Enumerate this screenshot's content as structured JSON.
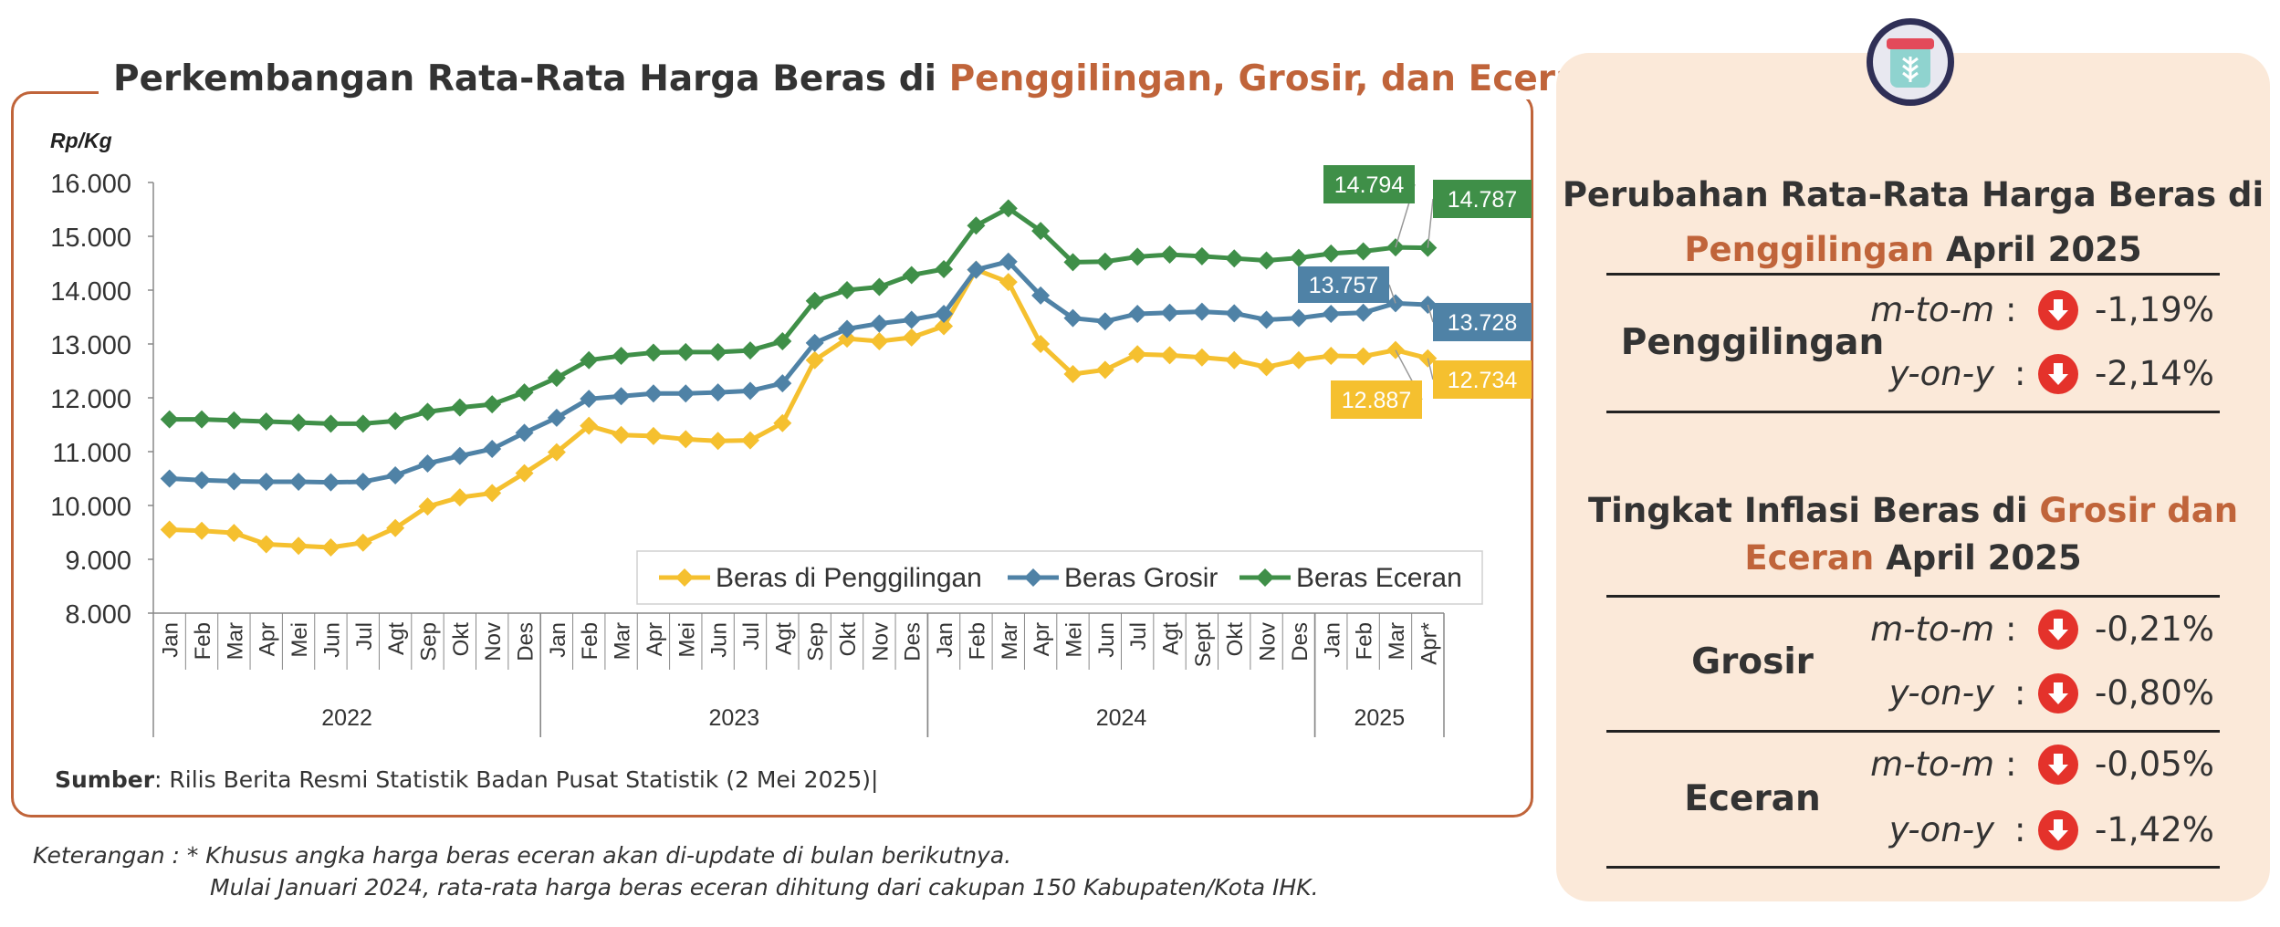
{
  "chart": {
    "title_part1": "Perkembangan Rata-Rata Harga Beras di ",
    "title_part2": "Penggilingan, Grosir, dan Eceran",
    "source_label": "Sumber",
    "source_text": ": Rilis Berita Resmi Statistik Badan Pusat Statistik (2 Mei 2025)|",
    "note_line1": "Keterangan : * Khusus angka harga beras eceran akan di-update di bulan berikutnya.",
    "note_line2": "Mulai Januari 2024, rata-rata harga beras eceran dihitung dari cakupan 150 Kabupaten/Kota IHK."
  },
  "chart_data": {
    "type": "line",
    "ylabel": "Rp/Kg",
    "ylim": [
      8000,
      16000
    ],
    "yticks": [
      "8.000",
      "9.000",
      "10.000",
      "11.000",
      "12.000",
      "13.000",
      "14.000",
      "15.000",
      "16.000"
    ],
    "x": [
      "Jan",
      "Feb",
      "Mar",
      "Apr",
      "Mei",
      "Jun",
      "Jul",
      "Agt",
      "Sep",
      "Okt",
      "Nov",
      "Des",
      "Jan",
      "Feb",
      "Mar",
      "Apr",
      "Mei",
      "Jun",
      "Jul",
      "Agt",
      "Sep",
      "Okt",
      "Nov",
      "Des",
      "Jan",
      "Feb",
      "Mar",
      "Apr",
      "Mei",
      "Jun",
      "Jul",
      "Agt",
      "Sept",
      "Okt",
      "Nov",
      "Des",
      "Jan",
      "Feb",
      "Mar",
      "Apr*"
    ],
    "years": [
      {
        "label": "2022",
        "start": 0,
        "end": 11
      },
      {
        "label": "2023",
        "start": 12,
        "end": 23
      },
      {
        "label": "2024",
        "start": 24,
        "end": 35
      },
      {
        "label": "2025",
        "start": 36,
        "end": 39
      }
    ],
    "legend_position": "bottom-right",
    "series": [
      {
        "name": "Beras di Penggilingan",
        "color": "#f5c02f",
        "values": [
          9550,
          9530,
          9490,
          9280,
          9250,
          9220,
          9310,
          9580,
          9980,
          10150,
          10230,
          10600,
          10990,
          11480,
          11310,
          11290,
          11230,
          11200,
          11210,
          11530,
          12700,
          13100,
          13050,
          13120,
          13330,
          14380,
          14150,
          13000,
          12440,
          12520,
          12810,
          12790,
          12750,
          12700,
          12570,
          12700,
          12780,
          12770,
          12887,
          12734
        ]
      },
      {
        "name": "Beras Grosir",
        "color": "#4f82a6",
        "values": [
          10500,
          10470,
          10450,
          10440,
          10440,
          10430,
          10440,
          10560,
          10780,
          10920,
          11050,
          11350,
          11630,
          11980,
          12030,
          12080,
          12080,
          12100,
          12130,
          12270,
          13020,
          13280,
          13380,
          13450,
          13560,
          14380,
          14530,
          13900,
          13480,
          13420,
          13560,
          13580,
          13600,
          13570,
          13450,
          13480,
          13560,
          13580,
          13757,
          13728
        ]
      },
      {
        "name": "Beras Eceran",
        "color": "#3f8f48",
        "values": [
          11600,
          11600,
          11580,
          11560,
          11540,
          11520,
          11520,
          11570,
          11740,
          11820,
          11880,
          12100,
          12370,
          12700,
          12780,
          12840,
          12850,
          12850,
          12880,
          13050,
          13800,
          14000,
          14060,
          14280,
          14390,
          15200,
          15520,
          15100,
          14520,
          14530,
          14620,
          14660,
          14630,
          14590,
          14550,
          14600,
          14680,
          14720,
          14794,
          14787
        ]
      }
    ],
    "annotations": [
      {
        "series": "Beras Eceran",
        "index": 38,
        "text": "14.794"
      },
      {
        "series": "Beras Eceran",
        "index": 39,
        "text": "14.787"
      },
      {
        "series": "Beras Grosir",
        "index": 38,
        "text": "13.757"
      },
      {
        "series": "Beras Grosir",
        "index": 39,
        "text": "13.728"
      },
      {
        "series": "Beras di Penggilingan",
        "index": 38,
        "text": "12.887"
      },
      {
        "series": "Beras di Penggilingan",
        "index": 39,
        "text": "12.734"
      }
    ]
  },
  "panel": {
    "title1_a": "Perubahan Rata-Rata Harga Beras di",
    "title1_b": "Penggilingan",
    "title1_c": " April 2025",
    "title2_a": "Tingkat Inflasi Beras di ",
    "title2_b": "Grosir dan",
    "title2_c": "Eceran",
    "title2_d": " April 2025",
    "colon": ":",
    "groups": [
      {
        "label": "Penggilingan",
        "mtm_label": "m-to-m",
        "mtm": "-1,19%",
        "yoy_label": "y-on-y",
        "yoy": "-2,14%"
      },
      {
        "label": "Grosir",
        "mtm_label": "m-to-m",
        "mtm": "-0,21%",
        "yoy_label": "y-on-y",
        "yoy": "-0,80%"
      },
      {
        "label": "Eceran",
        "mtm_label": "m-to-m",
        "mtm": "-0,05%",
        "yoy_label": "y-on-y",
        "yoy": "-1,42%"
      }
    ]
  }
}
